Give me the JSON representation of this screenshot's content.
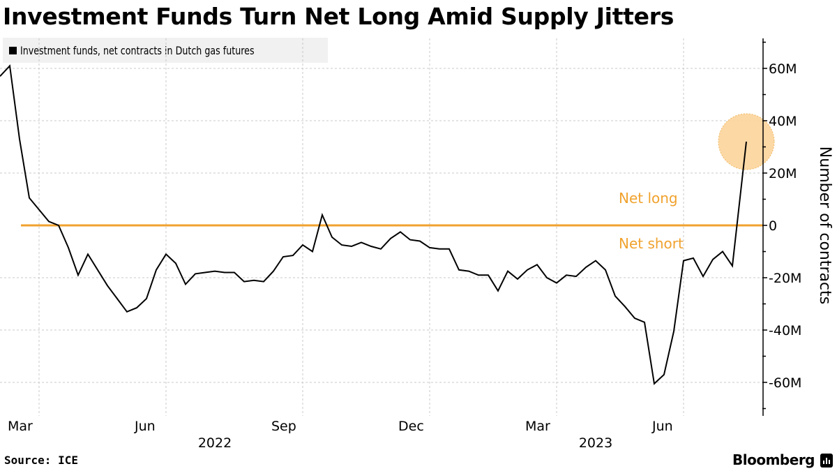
{
  "title": "Investment Funds Turn Net Long Amid Supply Jitters",
  "legend": [
    {
      "label": "Investment funds, net contracts in Dutch gas futures",
      "color": "#000000"
    }
  ],
  "footer": {
    "source": "Source: ICE",
    "brand": "Bloomberg"
  },
  "colors": {
    "line": "#000000",
    "zero_line": "#f0a22e",
    "highlight": "#fcd49b",
    "grid": "#c8c8c8",
    "legend_bg": "#f1f1f1"
  },
  "chart_data": {
    "type": "line",
    "title": "Investment Funds Turn Net Long Amid Supply Jitters",
    "xlabel": "",
    "ylabel": "Number of contracts",
    "y_unit": "millions of contracts",
    "ylim": [
      -72,
      72
    ],
    "yticks": [
      60,
      40,
      20,
      0,
      -20,
      -40,
      -60
    ],
    "ytick_labels": [
      "60M",
      "40M",
      "20M",
      "0",
      "-20M",
      "-40M",
      "-60M"
    ],
    "xticks": [
      {
        "label": "Mar",
        "week": 4
      },
      {
        "label": "Jun",
        "week": 17
      },
      {
        "label": "Sep",
        "week": 31
      },
      {
        "label": "Dec",
        "week": 44
      },
      {
        "label": "Mar",
        "week": 57
      },
      {
        "label": "Jun",
        "week": 70
      }
    ],
    "year_labels": [
      {
        "label": "2022",
        "week": 22
      },
      {
        "label": "2023",
        "week": 61
      }
    ],
    "x_range_weeks": [
      0,
      77
    ],
    "grid": true,
    "legend_position": "top-left",
    "annotations": [
      {
        "text": "Net long",
        "position": "above-zero-line"
      },
      {
        "text": "Net short",
        "position": "below-zero-line"
      },
      {
        "type": "highlight-circle",
        "target": "last-point",
        "value": 32
      }
    ],
    "reference_line": {
      "value": 0,
      "label": "zero"
    },
    "series": [
      {
        "name": "Investment funds, net contracts in Dutch gas futures",
        "values": [
          57,
          61,
          33,
          10.5,
          6,
          1.5,
          0,
          -8.5,
          -19,
          -11,
          -17,
          -23,
          -28,
          -33,
          -31.5,
          -28,
          -17,
          -11,
          -14.5,
          -22.5,
          -18.5,
          -18,
          -17.5,
          -18,
          -18,
          -21.5,
          -21,
          -21.5,
          -17.5,
          -12,
          -11.5,
          -7.5,
          -10,
          4,
          -4.5,
          -7.5,
          -8,
          -6.5,
          -8,
          -9,
          -5,
          -2.5,
          -5.5,
          -6,
          -8.5,
          -9,
          -9,
          -17,
          -17.5,
          -19,
          -19,
          -25,
          -17.5,
          -20.5,
          -17,
          -15,
          -20,
          -22,
          -19,
          -19.5,
          -16,
          -13.5,
          -17,
          -27,
          -31,
          -35.5,
          -37,
          -60.5,
          -57,
          -40.5,
          -13.5,
          -12.5,
          -19.5,
          -13,
          -10,
          -15.5,
          32
        ]
      }
    ]
  }
}
